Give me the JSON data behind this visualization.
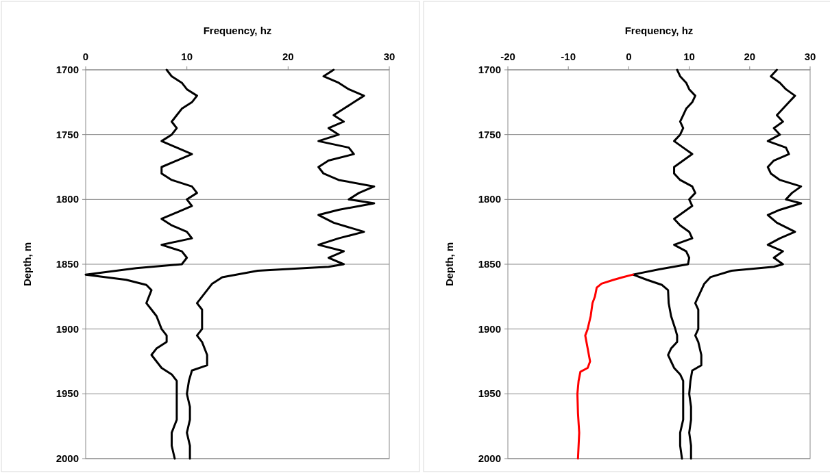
{
  "chart_data": [
    {
      "type": "line",
      "xlabel": "Frequency, hz",
      "ylabel": "Depth, m",
      "xlim": [
        0,
        30
      ],
      "xticks": [
        0,
        10,
        20,
        30
      ],
      "ylim": [
        2000,
        1700
      ],
      "yticks": [
        1700,
        1750,
        1800,
        1850,
        1900,
        1950,
        2000
      ],
      "grid": "y",
      "line_style": "solid",
      "series": [
        {
          "color": "#000000",
          "x": [
            8,
            8.5,
            9.5,
            10,
            11,
            10.5,
            9.5,
            9,
            8.5,
            9,
            8.5,
            7.5,
            9,
            10.5,
            9,
            7.5,
            7.5,
            8.5,
            10.5,
            11,
            10,
            10.5,
            9,
            7.5,
            8.5,
            10,
            10.5,
            7.5,
            9.5,
            10,
            9.5,
            5,
            0,
            4,
            6,
            6.5,
            6,
            6.5,
            7,
            7.5,
            8,
            8,
            7,
            6.5,
            7,
            7.5,
            8.5,
            9,
            9,
            9,
            9,
            8.5,
            8.5,
            8.8
          ],
          "values": [
            1700,
            1705,
            1710,
            1715,
            1720,
            1725,
            1730,
            1735,
            1740,
            1745,
            1750,
            1755,
            1760,
            1765,
            1770,
            1775,
            1780,
            1785,
            1790,
            1795,
            1800,
            1805,
            1810,
            1815,
            1820,
            1825,
            1830,
            1835,
            1840,
            1845,
            1850,
            1853,
            1858,
            1862,
            1866,
            1870,
            1880,
            1885,
            1890,
            1900,
            1905,
            1910,
            1915,
            1920,
            1925,
            1930,
            1935,
            1940,
            1950,
            1960,
            1970,
            1980,
            1990,
            2000
          ]
        },
        {
          "color": "#000000",
          "x": [
            24.5,
            23.5,
            25,
            26,
            27.5,
            26.5,
            25.5,
            24.5,
            25.5,
            24,
            25,
            23,
            26,
            26.5,
            24,
            23,
            23.5,
            25,
            28.5,
            27,
            26,
            28.5,
            25,
            23,
            24.5,
            27.5,
            25,
            23,
            25.5,
            24,
            25.5,
            24,
            17,
            13.5,
            12.5,
            12,
            11.5,
            11,
            11.5,
            11.5,
            11.5,
            11,
            11.5,
            12,
            12,
            10.5,
            10.2,
            10,
            10.3,
            10.3,
            10,
            10.3,
            10.3
          ],
          "values": [
            1700,
            1705,
            1710,
            1715,
            1720,
            1725,
            1730,
            1735,
            1740,
            1745,
            1750,
            1755,
            1760,
            1765,
            1770,
            1775,
            1780,
            1785,
            1790,
            1795,
            1800,
            1803,
            1808,
            1812,
            1818,
            1825,
            1830,
            1835,
            1840,
            1845,
            1850,
            1852,
            1855,
            1860,
            1865,
            1870,
            1875,
            1880,
            1885,
            1890,
            1900,
            1905,
            1910,
            1920,
            1928,
            1932,
            1940,
            1950,
            1960,
            1970,
            1980,
            1990,
            2000
          ]
        }
      ]
    },
    {
      "type": "line",
      "xlabel": "Frequency, hz",
      "ylabel": "Depth, m",
      "xlim": [
        -20,
        30
      ],
      "xticks": [
        -20,
        -10,
        0,
        10,
        20,
        30
      ],
      "ylim": [
        2000,
        1700
      ],
      "yticks": [
        1700,
        1750,
        1800,
        1850,
        1900,
        1950,
        2000
      ],
      "grid": "y",
      "line_style": "solid",
      "series": [
        {
          "color": "#000000",
          "x": [
            8,
            8.5,
            9.5,
            10,
            11,
            10.5,
            9.5,
            9,
            8.5,
            9,
            8.5,
            7.5,
            9,
            10.5,
            9,
            7.5,
            7.5,
            8.5,
            10.5,
            11,
            10,
            10.5,
            9,
            7.5,
            8.5,
            10,
            10.5,
            7.5,
            9.5,
            10,
            9.8,
            5,
            0.7,
            3,
            5.5,
            6.5,
            6.6,
            6.8,
            7,
            7.7,
            8,
            8,
            7,
            6.5,
            7,
            7.5,
            8.5,
            9,
            9,
            9,
            9,
            8.5,
            8.5,
            8.8
          ],
          "values": [
            1700,
            1705,
            1710,
            1715,
            1720,
            1725,
            1730,
            1735,
            1740,
            1745,
            1750,
            1755,
            1760,
            1765,
            1770,
            1775,
            1780,
            1785,
            1790,
            1795,
            1800,
            1805,
            1810,
            1815,
            1820,
            1825,
            1830,
            1835,
            1840,
            1845,
            1850,
            1854,
            1858,
            1862,
            1866,
            1870,
            1880,
            1885,
            1890,
            1900,
            1905,
            1910,
            1915,
            1920,
            1925,
            1930,
            1935,
            1940,
            1950,
            1960,
            1970,
            1980,
            1990,
            2000
          ]
        },
        {
          "color": "#000000",
          "x": [
            24.5,
            23.5,
            25,
            26,
            27.5,
            26.5,
            25.5,
            24.5,
            25.5,
            24,
            25,
            23,
            26,
            26.5,
            24,
            23,
            23.5,
            25,
            28.5,
            27,
            26,
            28.5,
            25,
            23,
            24.5,
            27.5,
            25,
            23,
            25.5,
            24,
            25.5,
            24,
            17,
            13.5,
            12.5,
            12,
            11.5,
            11,
            11.5,
            11.5,
            11.5,
            11,
            11.5,
            12,
            12,
            10.5,
            10.2,
            10,
            10.3,
            10.3,
            10,
            10.3,
            10.3
          ],
          "values": [
            1700,
            1705,
            1710,
            1715,
            1720,
            1725,
            1730,
            1735,
            1740,
            1745,
            1750,
            1755,
            1760,
            1765,
            1770,
            1775,
            1780,
            1785,
            1790,
            1795,
            1800,
            1803,
            1808,
            1812,
            1818,
            1825,
            1830,
            1835,
            1840,
            1845,
            1850,
            1852,
            1855,
            1860,
            1865,
            1870,
            1875,
            1880,
            1885,
            1890,
            1900,
            1905,
            1910,
            1920,
            1928,
            1932,
            1940,
            1950,
            1960,
            1970,
            1980,
            1990,
            2000
          ]
        },
        {
          "color": "#ff0000",
          "x": [
            0.7,
            -1,
            -2.5,
            -4.5,
            -5.3,
            -5.6,
            -6,
            -6.3,
            -6.8,
            -7.2,
            -6.8,
            -6.4,
            -6.8,
            -8,
            -8.3,
            -8.5,
            -8.4,
            -8.2,
            -8.4
          ],
          "values": [
            1858,
            1860,
            1862,
            1865,
            1868,
            1875,
            1880,
            1890,
            1900,
            1905,
            1915,
            1925,
            1930,
            1933,
            1940,
            1950,
            1965,
            1980,
            2000
          ]
        }
      ]
    }
  ]
}
